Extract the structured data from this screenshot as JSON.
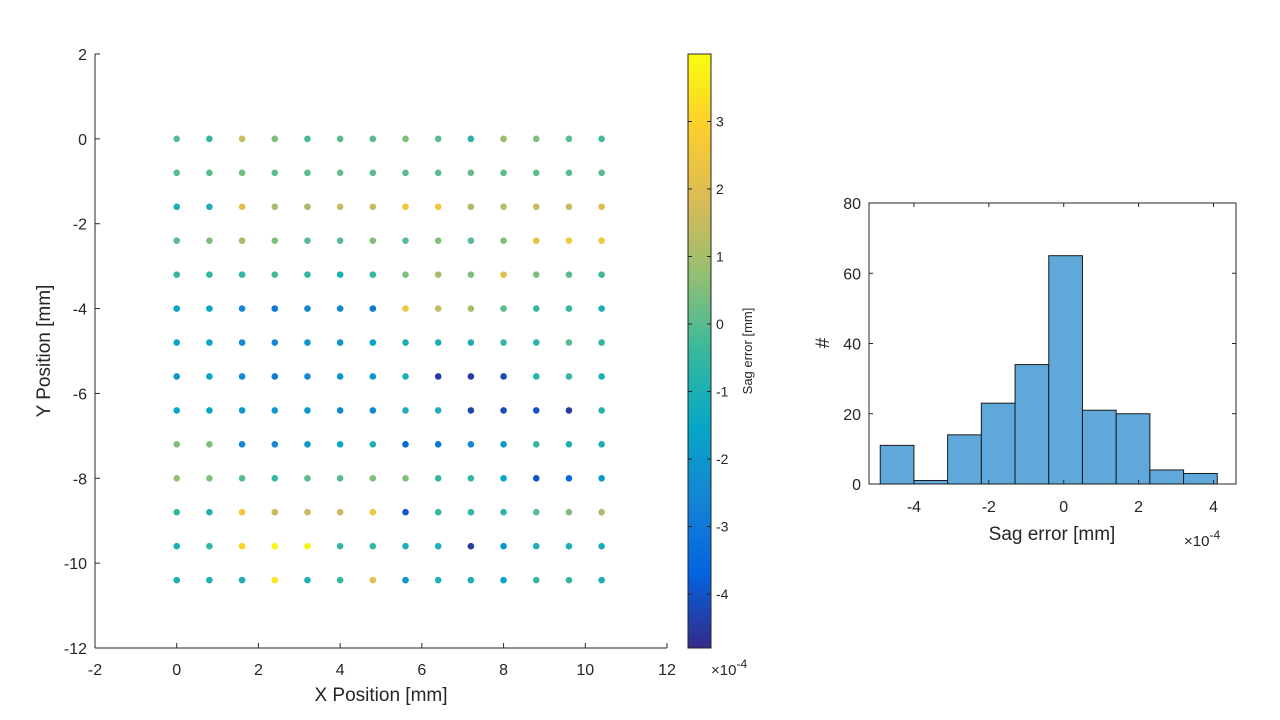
{
  "chart_data": [
    {
      "type": "scatter",
      "xlabel": "X Position [mm]",
      "ylabel": "Y Position [mm]",
      "xlim": [
        -2,
        12
      ],
      "ylim": [
        -12,
        2
      ],
      "xticks": [
        -2,
        0,
        2,
        4,
        6,
        8,
        10,
        12
      ],
      "yticks": [
        -12,
        -10,
        -8,
        -6,
        -4,
        -2,
        0,
        2
      ],
      "x": [
        0,
        0.8,
        1.6,
        2.4,
        3.2,
        4.0,
        4.8,
        5.6,
        6.4,
        7.2,
        8.0,
        8.8,
        9.6,
        10.4
      ],
      "y": [
        0,
        -0.8,
        -1.6,
        -2.4,
        -3.2,
        -4.0,
        -4.8,
        -5.6,
        -6.4,
        -7.2,
        -8.0,
        -8.8,
        -9.6,
        -10.4
      ],
      "grid": [
        [
          0.0,
          -0.5,
          1.5,
          0.5,
          -0.2,
          0.0,
          0.0,
          0.5,
          0.0,
          -0.7,
          0.8,
          0.5,
          0.0,
          -0.3
        ],
        [
          0.0,
          0.0,
          0.3,
          0.0,
          0.0,
          0.2,
          0.0,
          0.0,
          0.0,
          0.2,
          0.0,
          0.0,
          0.0,
          0.0
        ],
        [
          -1.0,
          -1.0,
          2.0,
          1.0,
          1.0,
          1.5,
          1.5,
          2.5,
          2.5,
          1.0,
          1.2,
          1.5,
          1.5,
          2.0
        ],
        [
          0.0,
          0.5,
          1.0,
          0.5,
          0.0,
          0.0,
          0.5,
          0.0,
          0.5,
          0.0,
          0.5,
          2.2,
          2.5,
          2.5
        ],
        [
          -0.5,
          -0.5,
          -0.5,
          -0.2,
          -0.5,
          -1.0,
          -0.5,
          0.5,
          1.0,
          0.5,
          2.0,
          0.5,
          0.0,
          -0.3
        ],
        [
          -1.5,
          -1.5,
          -2.5,
          -3.0,
          -2.5,
          -2.5,
          -3.0,
          2.5,
          1.5,
          1.0,
          0.0,
          -0.5,
          -0.5,
          -1.0
        ],
        [
          -1.5,
          -1.5,
          -2.5,
          -2.5,
          -2.0,
          -2.0,
          -1.5,
          -1.0,
          -1.0,
          -1.0,
          -0.5,
          -0.7,
          0.0,
          -0.5
        ],
        [
          -2.0,
          -1.5,
          -2.5,
          -3.0,
          -2.5,
          -2.0,
          -2.0,
          -1.0,
          -4.5,
          -4.5,
          -4.2,
          -0.8,
          -0.5,
          -1.0
        ],
        [
          -1.5,
          -1.5,
          -2.0,
          -2.0,
          -2.0,
          -2.5,
          -2.5,
          -1.0,
          -1.0,
          -4.3,
          -4.2,
          -4.0,
          -4.5,
          -0.7
        ],
        [
          0.5,
          0.5,
          -2.5,
          -2.5,
          -2.0,
          -1.5,
          -1.0,
          -3.5,
          -3.0,
          -2.5,
          -2.0,
          -0.5,
          -1.0,
          -1.0
        ],
        [
          0.8,
          0.5,
          0.0,
          -0.5,
          0.0,
          0.0,
          0.5,
          0.5,
          -0.5,
          -0.5,
          -1.5,
          -4.0,
          -3.5,
          -2.0
        ],
        [
          -0.5,
          -1.0,
          2.5,
          1.5,
          1.5,
          1.5,
          2.5,
          -4.0,
          -0.5,
          -0.5,
          -0.5,
          0.0,
          0.5,
          1.0
        ],
        [
          -1.0,
          -0.5,
          3.0,
          3.8,
          3.8,
          -0.5,
          -0.5,
          -1.0,
          -1.0,
          -4.5,
          -2.0,
          -1.0,
          -1.0,
          -1.0
        ],
        [
          -1.0,
          -1.0,
          -1.0,
          3.5,
          -1.0,
          -0.5,
          2.0,
          -2.0,
          -1.0,
          -1.0,
          -1.5,
          -0.5,
          -0.5,
          -1.0
        ]
      ],
      "colorbar": {
        "label": "Sag error [mm]",
        "clim": [
          -4.8,
          4.0
        ],
        "ticks": [
          -4,
          -3,
          -2,
          -1,
          0,
          1,
          2,
          3
        ],
        "multiplier": "×10",
        "multiplier_exp": "-4",
        "colormap": "parula"
      }
    },
    {
      "type": "bar",
      "xlabel": "Sag error [mm]",
      "ylabel": "#",
      "xlim": [
        -5.2,
        4.6
      ],
      "ylim": [
        0,
        80
      ],
      "xticks": [
        -4,
        -2,
        0,
        2,
        4
      ],
      "yticks": [
        0,
        20,
        40,
        60,
        80
      ],
      "bin_edges": [
        -4.9,
        -4.0,
        -3.1,
        -2.2,
        -1.3,
        -0.4,
        0.5,
        1.4,
        2.3,
        3.2,
        4.1
      ],
      "values": [
        11,
        1,
        14,
        23,
        34,
        65,
        21,
        20,
        4,
        3
      ],
      "multiplier": "×10",
      "multiplier_exp": "-4",
      "bar_color": "#5fa8d9"
    }
  ]
}
